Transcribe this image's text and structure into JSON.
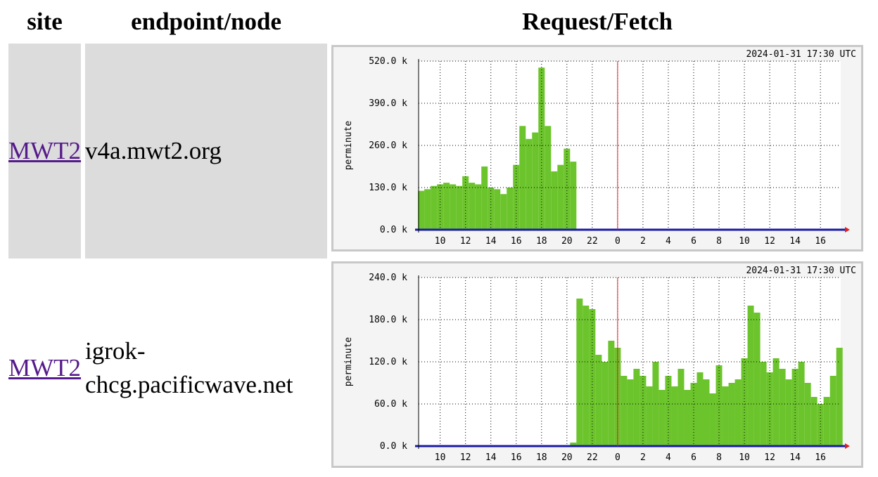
{
  "header": {
    "columns": [
      "site",
      "endpoint/node",
      "Request/Fetch"
    ]
  },
  "rows": [
    {
      "site": "MWT2",
      "endpoint": "v4a.mwt2.org",
      "chart": {
        "type": "bar",
        "timestamp": "2024-01-31 17:30 UTC",
        "y_label": "perminute",
        "color": "#6cc42c",
        "marker_x": 24,
        "x": [
          8.5,
          9,
          9.5,
          10,
          10.5,
          11,
          11.5,
          12,
          12.5,
          13,
          13.5,
          14,
          14.5,
          15,
          15.5,
          16,
          16.5,
          17,
          17.5,
          18,
          18.5,
          19,
          19.5,
          20,
          20.5
        ],
        "values": [
          120000,
          125000,
          135000,
          140000,
          145000,
          140000,
          135000,
          165000,
          145000,
          140000,
          195000,
          130000,
          125000,
          110000,
          130000,
          200000,
          320000,
          280000,
          300000,
          500000,
          320000,
          180000,
          200000,
          250000,
          210000
        ],
        "ylim": [
          0,
          520000
        ],
        "yticks": [
          {
            "value": 0,
            "label": "0.0 k"
          },
          {
            "value": 130000,
            "label": "130.0 k"
          },
          {
            "value": 260000,
            "label": "260.0 k"
          },
          {
            "value": 390000,
            "label": "390.0 k"
          },
          {
            "value": 520000,
            "label": "520.0 k"
          }
        ],
        "xlim": [
          8.3,
          41.6
        ],
        "xticks": [
          10,
          12,
          14,
          16,
          18,
          20,
          22,
          {
            "value": 24,
            "label": "0"
          },
          {
            "value": 26,
            "label": "2"
          },
          {
            "value": 28,
            "label": "4"
          },
          {
            "value": 30,
            "label": "6"
          },
          {
            "value": 32,
            "label": "8"
          },
          {
            "value": 34,
            "label": "10"
          },
          {
            "value": 36,
            "label": "12"
          },
          {
            "value": 38,
            "label": "14"
          },
          {
            "value": 40,
            "label": "16"
          }
        ]
      }
    },
    {
      "site": "MWT2",
      "endpoint": "igrok-chcg.pacificwave.net",
      "chart": {
        "type": "bar",
        "timestamp": "2024-01-31 17:30 UTC",
        "y_label": "perminute",
        "color": "#6cc42c",
        "marker_x": 24,
        "x": [
          20.5,
          21,
          21.5,
          22,
          22.5,
          23,
          23.5,
          24,
          24.5,
          25,
          25.5,
          26,
          26.5,
          27,
          27.5,
          28,
          28.5,
          29,
          29.5,
          30,
          30.5,
          31,
          31.5,
          32,
          32.5,
          33,
          33.5,
          34,
          34.5,
          35,
          35.5,
          36,
          36.5,
          37,
          37.5,
          38,
          38.5,
          39,
          39.5,
          40,
          40.5,
          41,
          41.5
        ],
        "values": [
          5000,
          210000,
          200000,
          195000,
          130000,
          120000,
          150000,
          140000,
          100000,
          95000,
          110000,
          100000,
          85000,
          120000,
          80000,
          100000,
          85000,
          110000,
          80000,
          90000,
          105000,
          95000,
          75000,
          115000,
          85000,
          90000,
          95000,
          125000,
          200000,
          190000,
          120000,
          105000,
          125000,
          110000,
          95000,
          110000,
          120000,
          90000,
          70000,
          60000,
          70000,
          100000,
          140000
        ],
        "ylim": [
          0,
          240000
        ],
        "yticks": [
          {
            "value": 0,
            "label": "0.0 k"
          },
          {
            "value": 60000,
            "label": "60.0 k"
          },
          {
            "value": 120000,
            "label": "120.0 k"
          },
          {
            "value": 180000,
            "label": "180.0 k"
          },
          {
            "value": 240000,
            "label": "240.0 k"
          }
        ],
        "xlim": [
          8.3,
          41.6
        ],
        "xticks": [
          10,
          12,
          14,
          16,
          18,
          20,
          22,
          {
            "value": 24,
            "label": "0"
          },
          {
            "value": 26,
            "label": "2"
          },
          {
            "value": 28,
            "label": "4"
          },
          {
            "value": 30,
            "label": "6"
          },
          {
            "value": 32,
            "label": "8"
          },
          {
            "value": 34,
            "label": "10"
          },
          {
            "value": 36,
            "label": "12"
          },
          {
            "value": 38,
            "label": "14"
          },
          {
            "value": 40,
            "label": "16"
          }
        ]
      }
    }
  ]
}
